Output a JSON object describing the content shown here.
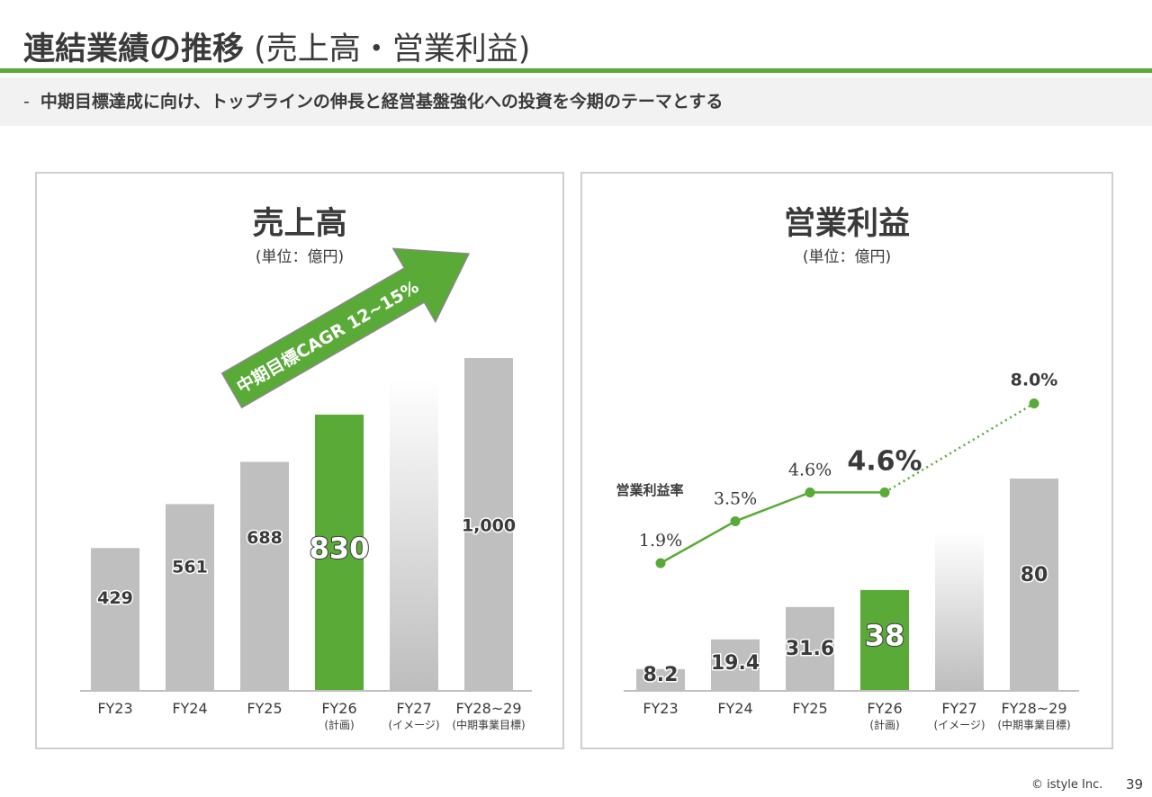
{
  "header": {
    "title_main": "連結業績の推移",
    "title_sub": " (売上高・営業利益)",
    "subtitle_dash": "-",
    "subtitle": "中期目標達成に向け、トップラインの伸長と経営基盤強化への投資を今期のテーマとする"
  },
  "colors": {
    "accent_green": "#5aaa38",
    "bar_gray": "#bfbfbf",
    "axis": "#bfbfbf"
  },
  "chart_data": [
    {
      "type": "bar",
      "title": "売上高",
      "unit": "(単位：億円)",
      "categories": [
        "FY23",
        "FY24",
        "FY25",
        "FY26",
        "FY27",
        "FY28~29"
      ],
      "category_notes": [
        "",
        "",
        "",
        "(計画)",
        "(イメージ)",
        "(中期事業目標)"
      ],
      "values": [
        429,
        561,
        688,
        830,
        null,
        1000
      ],
      "value_labels": [
        "429",
        "561",
        "688",
        "830",
        "",
        "1,000"
      ],
      "highlight_index": 3,
      "image_index": 4,
      "image_value_estimate": 940,
      "ylim": [
        0,
        1100
      ],
      "annotation": "中期目標CAGR 12~15%"
    },
    {
      "type": "bar",
      "title": "営業利益",
      "unit": "(単位：億円)",
      "categories": [
        "FY23",
        "FY24",
        "FY25",
        "FY26",
        "FY27",
        "FY28~29"
      ],
      "category_notes": [
        "",
        "",
        "",
        "(計画)",
        "(イメージ)",
        "(中期事業目標)"
      ],
      "values": [
        8.2,
        19.4,
        31.6,
        38,
        null,
        80
      ],
      "value_labels": [
        "8.2",
        "19.4",
        "31.6",
        "38",
        "",
        "80"
      ],
      "highlight_index": 3,
      "image_index": 4,
      "image_value_estimate": 60,
      "ylim": [
        0,
        100
      ],
      "line_series": {
        "name": "営業利益率",
        "categories": [
          "FY23",
          "FY24",
          "FY25",
          "FY26",
          "FY28~29"
        ],
        "values": [
          1.9,
          3.5,
          4.6,
          4.6,
          8.0
        ],
        "labels": [
          "1.9%",
          "3.5%",
          "4.6%",
          "4.6%",
          "8.0%"
        ],
        "dotted_from_index": 3,
        "ylim": [
          0,
          9.4
        ]
      }
    }
  ],
  "footer": {
    "copyright": "© istyle Inc.",
    "page": "39"
  }
}
